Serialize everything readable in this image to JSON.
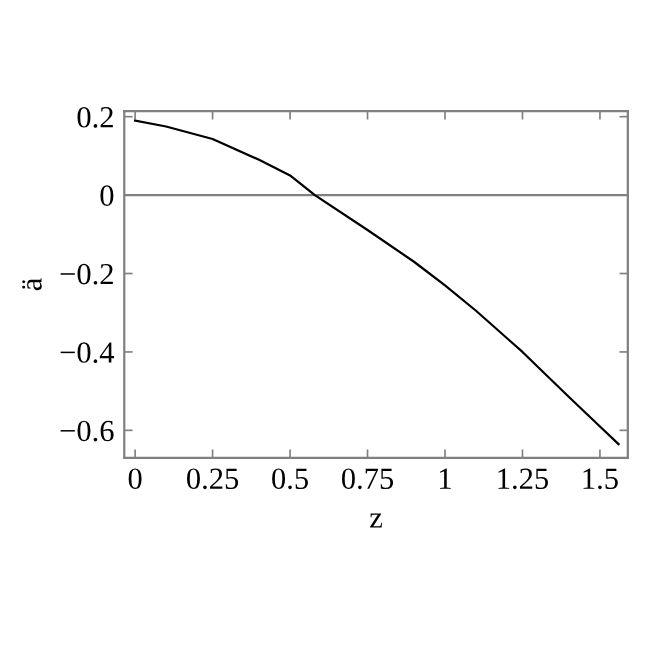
{
  "chart_data": {
    "type": "line",
    "xlabel": "z",
    "ylabel": "ä",
    "x": [
      0,
      0.1,
      0.25,
      0.4,
      0.5,
      0.58,
      0.75,
      0.9,
      1,
      1.1,
      1.25,
      1.4,
      1.5,
      1.56
    ],
    "series": [
      {
        "color": "#000000",
        "values": [
          0.19,
          0.175,
          0.143,
          0.09,
          0.05,
          0.0,
          -0.089,
          -0.17,
          -0.23,
          -0.295,
          -0.4,
          -0.515,
          -0.59,
          -0.635
        ]
      }
    ],
    "xlim": [
      -0.035,
      1.59
    ],
    "ylim": [
      -0.67,
      0.214
    ],
    "xticks": [
      0,
      0.25,
      0.5,
      0.75,
      1,
      1.25,
      1.5
    ],
    "yticks": [
      -0.6,
      -0.4,
      -0.2,
      0,
      0.2
    ],
    "ref_lines": [
      {
        "axis": "y",
        "value": 0,
        "color": "#808080"
      }
    ],
    "grid": false,
    "marker": "none",
    "line_style": "solid"
  }
}
